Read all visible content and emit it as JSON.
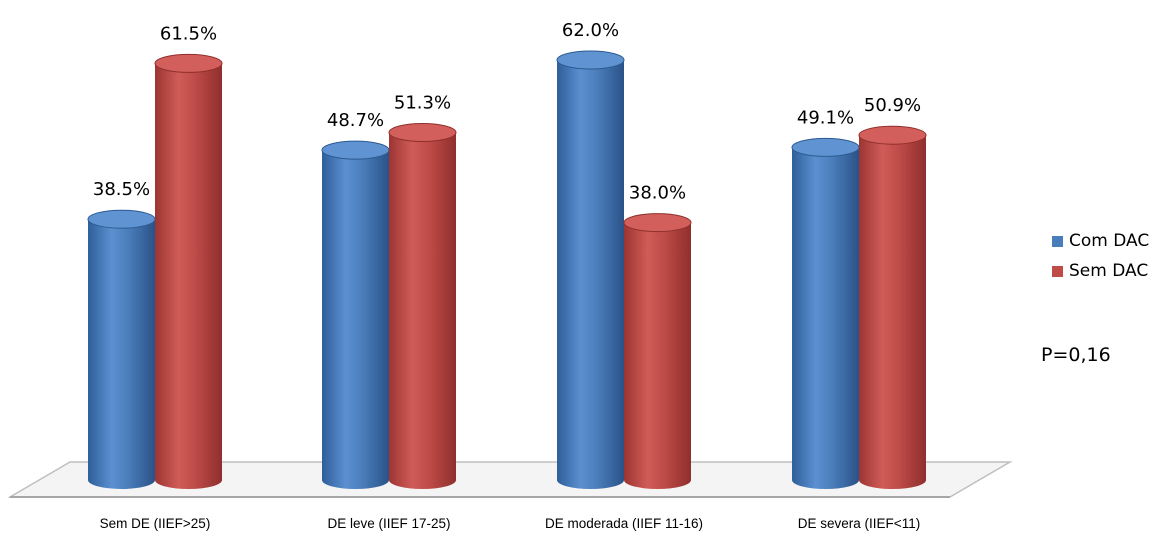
{
  "chart_data": {
    "type": "bar",
    "categories": [
      "Sem DE (IIEF>25)",
      "DE leve (IIEF 17-25)",
      "DE moderada (IIEF 11-16)",
      "DE severa (IIEF<11)"
    ],
    "series": [
      {
        "name": "Com DAC",
        "values": [
          38.5,
          48.7,
          62.0,
          49.1
        ],
        "labels": [
          "38.5%",
          "48.7%",
          "62.0%",
          "49.1%"
        ],
        "color": "#4a7ebb"
      },
      {
        "name": "Sem DAC",
        "values": [
          61.5,
          51.3,
          38.0,
          50.9
        ],
        "labels": [
          "61.5%",
          "51.3%",
          "38.0%",
          "50.9%"
        ],
        "color": "#be4b48"
      }
    ],
    "ylim": [
      0,
      62
    ],
    "grid": false,
    "legend_position": "right",
    "style": "3d-cylinder",
    "annotation": "P=0,16"
  }
}
